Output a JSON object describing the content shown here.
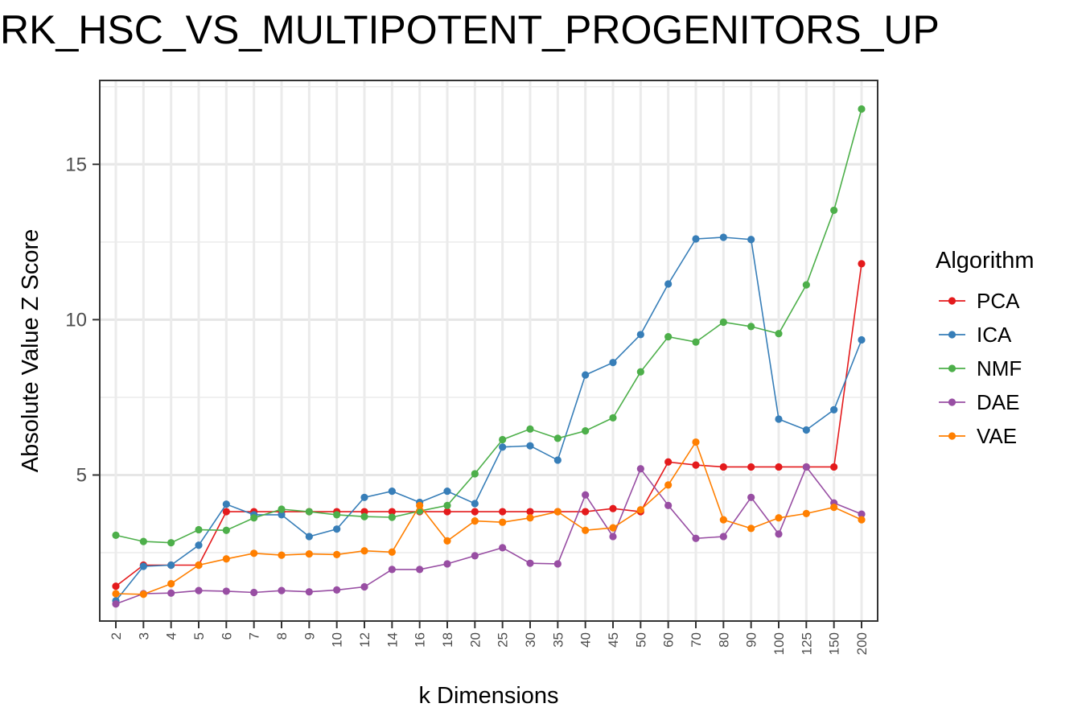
{
  "chart_data": {
    "type": "line",
    "title": "RK_HSC_VS_MULTIPOTENT_PROGENITORS_UP",
    "xlabel": "k Dimensions",
    "ylabel": "Absolute Value Z Score",
    "ylim": [
      0.3,
      17.7
    ],
    "y_ticks": [
      5,
      10,
      15
    ],
    "y_tick_labels": [
      "5",
      "10",
      "15"
    ],
    "grid": true,
    "legend_title": "Algorithm",
    "legend_position": "right",
    "categories": [
      "2",
      "3",
      "4",
      "5",
      "6",
      "7",
      "8",
      "9",
      "10",
      "12",
      "14",
      "16",
      "18",
      "20",
      "25",
      "30",
      "35",
      "40",
      "45",
      "50",
      "60",
      "70",
      "80",
      "90",
      "100",
      "125",
      "150",
      "200"
    ],
    "series": [
      {
        "name": "PCA",
        "color": "#E41A1C",
        "values": [
          1.42,
          2.1,
          2.1,
          2.1,
          3.82,
          3.82,
          3.82,
          3.82,
          3.82,
          3.82,
          3.82,
          3.82,
          3.82,
          3.82,
          3.82,
          3.82,
          3.82,
          3.82,
          3.92,
          3.82,
          5.42,
          5.32,
          5.26,
          5.26,
          5.26,
          5.26,
          5.26,
          11.8
        ]
      },
      {
        "name": "ICA",
        "color": "#377EB8",
        "values": [
          0.95,
          2.06,
          2.1,
          2.74,
          4.06,
          3.72,
          3.72,
          3.02,
          3.26,
          4.28,
          4.48,
          4.12,
          4.48,
          4.08,
          5.9,
          5.94,
          5.48,
          8.22,
          8.62,
          9.52,
          11.15,
          12.6,
          12.65,
          12.58,
          6.8,
          6.45,
          7.1,
          9.35
        ]
      },
      {
        "name": "NMF",
        "color": "#4DAF4A",
        "values": [
          3.06,
          2.86,
          2.82,
          3.24,
          3.22,
          3.62,
          3.9,
          3.82,
          3.72,
          3.66,
          3.64,
          3.84,
          4.02,
          5.04,
          6.14,
          6.48,
          6.18,
          6.42,
          6.84,
          8.32,
          9.45,
          9.28,
          9.92,
          9.78,
          9.55,
          11.12,
          13.52,
          16.78
        ]
      },
      {
        "name": "DAE",
        "color": "#984EA3",
        "values": [
          0.85,
          1.18,
          1.2,
          1.28,
          1.26,
          1.22,
          1.28,
          1.24,
          1.3,
          1.4,
          1.96,
          1.96,
          2.14,
          2.4,
          2.66,
          2.16,
          2.14,
          4.36,
          3.02,
          5.2,
          4.02,
          2.96,
          3.02,
          4.28,
          3.1,
          5.26,
          4.1,
          3.74
        ]
      },
      {
        "name": "VAE",
        "color": "#FF7F00",
        "values": [
          1.18,
          1.16,
          1.5,
          2.1,
          2.3,
          2.48,
          2.42,
          2.46,
          2.44,
          2.56,
          2.52,
          4.02,
          2.88,
          3.52,
          3.48,
          3.62,
          3.82,
          3.22,
          3.3,
          3.88,
          4.68,
          6.06,
          3.56,
          3.28,
          3.62,
          3.76,
          3.96,
          3.56
        ]
      }
    ]
  }
}
